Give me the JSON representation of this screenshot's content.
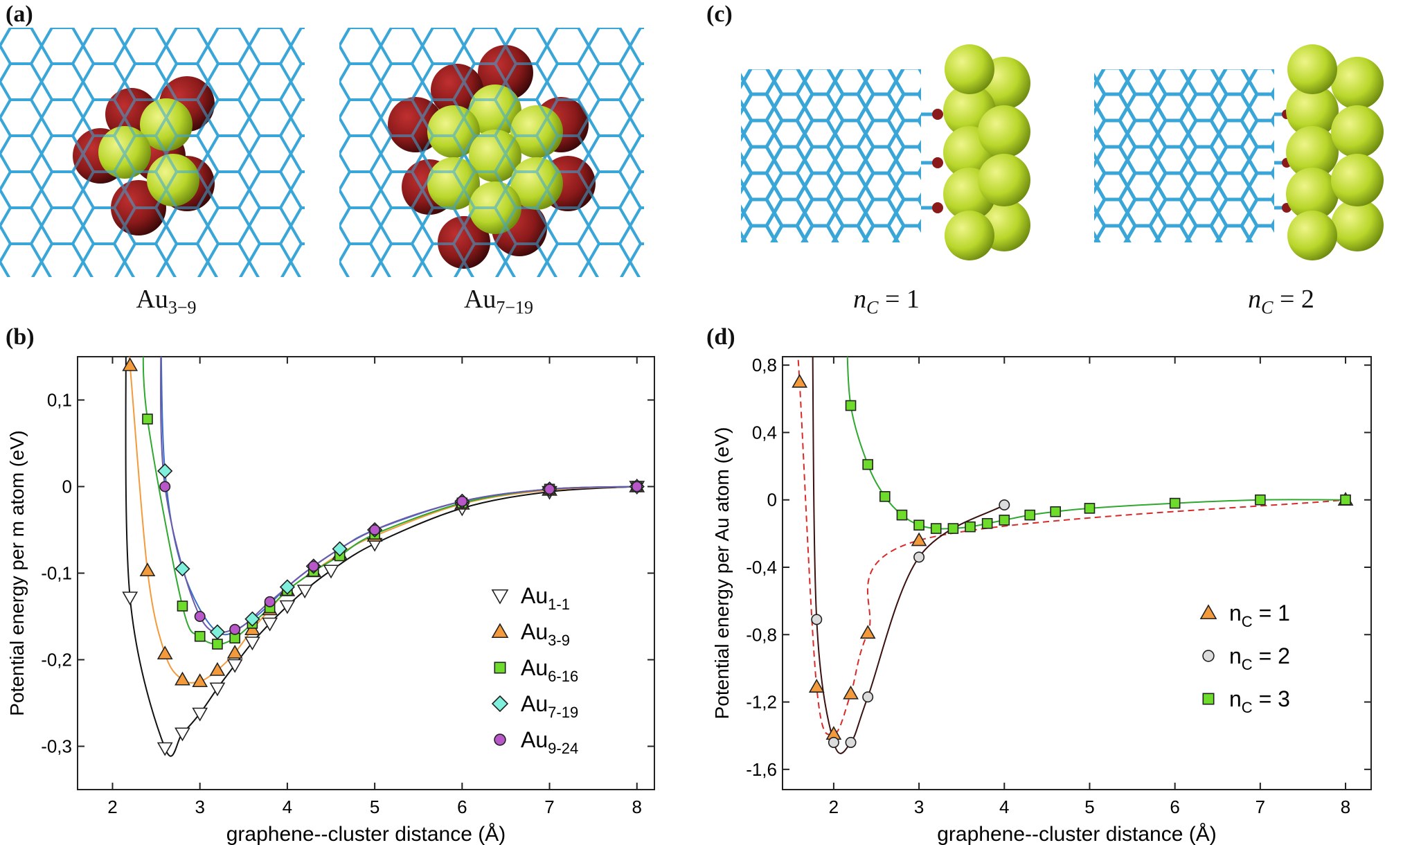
{
  "panels": {
    "a": "(a)",
    "b": "(b)",
    "c": "(c)",
    "d": "(d)"
  },
  "captions": {
    "a_left_main": "Au",
    "a_left_sub": "3−9",
    "a_right_main": "Au",
    "a_right_sub": "7−19",
    "c_left_var": "n",
    "c_left_sub": "C",
    "c_left_rest": " = 1",
    "c_right_var": "n",
    "c_right_sub": "C",
    "c_right_rest": " = 2"
  },
  "colors": {
    "graphene": "#3aa6d8",
    "gold": "#b8d62a",
    "red": "#8b1a1a",
    "hydrogen": "#c8ccd2"
  },
  "chart_data": [
    {
      "id": "b",
      "type": "scatter",
      "xlabel": "graphene--cluster distance (Å)",
      "ylabel": "Potential energy per m atom (eV)",
      "xlim": [
        1.6,
        8.2
      ],
      "ylim": [
        -0.35,
        0.15
      ],
      "xticks": [
        2,
        3,
        4,
        5,
        6,
        7,
        8
      ],
      "xtick_labels": [
        "2",
        "3",
        "4",
        "5",
        "6",
        "7",
        "8"
      ],
      "yticks": [
        0.1,
        0,
        -0.1,
        -0.2,
        -0.3
      ],
      "ytick_labels": [
        "0,1",
        "0",
        "-0,1",
        "-0,2",
        "-0,3"
      ],
      "legend_position": "right",
      "series": [
        {
          "name": "Au",
          "sub": "1-1",
          "marker": "triangle-down",
          "color": "#ffffff",
          "line": "#111111",
          "x": [
            2.2,
            2.6,
            2.8,
            3.0,
            3.2,
            3.4,
            3.6,
            3.8,
            4.0,
            4.2,
            4.5,
            5.0,
            6.0,
            7.0,
            8.0
          ],
          "y": [
            -0.128,
            -0.302,
            -0.285,
            -0.262,
            -0.233,
            -0.206,
            -0.18,
            -0.158,
            -0.138,
            -0.12,
            -0.097,
            -0.066,
            -0.025,
            -0.006,
            0.0
          ]
        },
        {
          "name": "Au",
          "sub": "3-9",
          "marker": "triangle",
          "color": "#f39a3c",
          "line": "#f39a3c",
          "x": [
            2.2,
            2.4,
            2.6,
            2.8,
            3.0,
            3.2,
            3.4,
            3.6,
            3.8,
            4.0,
            4.3,
            4.6,
            5.0,
            6.0,
            7.0,
            8.0
          ],
          "y": [
            0.14,
            -0.097,
            -0.193,
            -0.223,
            -0.225,
            -0.212,
            -0.192,
            -0.165,
            -0.142,
            -0.12,
            -0.098,
            -0.078,
            -0.057,
            -0.02,
            -0.004,
            0.0
          ]
        },
        {
          "name": "Au",
          "sub": "6-16",
          "marker": "square",
          "color": "#6ddc2a",
          "line": "#2ea82e",
          "x": [
            2.4,
            2.8,
            3.0,
            3.2,
            3.4,
            3.6,
            3.8,
            4.0,
            4.3,
            4.6,
            5.0,
            6.0,
            7.0,
            8.0
          ],
          "y": [
            0.078,
            -0.138,
            -0.173,
            -0.182,
            -0.175,
            -0.158,
            -0.14,
            -0.12,
            -0.098,
            -0.08,
            -0.055,
            -0.019,
            -0.003,
            0.0
          ]
        },
        {
          "name": "Au",
          "sub": "7-19",
          "marker": "diamond",
          "color": "#7ff0dc",
          "line": "#3a6ec8",
          "x": [
            2.6,
            2.8,
            3.2,
            3.6,
            4.0,
            4.3,
            4.6,
            5.0,
            6.0,
            7.0,
            8.0
          ],
          "y": [
            0.018,
            -0.095,
            -0.168,
            -0.153,
            -0.116,
            -0.092,
            -0.072,
            -0.05,
            -0.017,
            -0.003,
            0.0
          ]
        },
        {
          "name": "Au",
          "sub": "9-24",
          "marker": "circle",
          "color": "#b858c8",
          "line": "#6a5aa8",
          "x": [
            2.6,
            3.0,
            3.4,
            3.8,
            4.3,
            5.0,
            6.0,
            7.0,
            8.0
          ],
          "y": [
            0.0,
            -0.15,
            -0.165,
            -0.133,
            -0.092,
            -0.05,
            -0.017,
            -0.003,
            0.0
          ]
        }
      ]
    },
    {
      "id": "d",
      "type": "scatter",
      "xlabel": "graphene--cluster distance (Å)",
      "ylabel": "Potential energy per Au atom (eV)",
      "xlim": [
        1.4,
        8.3
      ],
      "ylim": [
        -1.72,
        0.85
      ],
      "xticks": [
        2,
        3,
        4,
        5,
        6,
        7,
        8
      ],
      "xtick_labels": [
        "2",
        "3",
        "4",
        "5",
        "6",
        "7",
        "8"
      ],
      "yticks": [
        0.8,
        0.4,
        0,
        -0.4,
        -0.8,
        -1.2,
        -1.6
      ],
      "ytick_labels": [
        "0,8",
        "0,4",
        "0",
        "-0,4",
        "-0,8",
        "-1,2",
        "-1,6"
      ],
      "legend_position": "right",
      "series": [
        {
          "name": "n",
          "sub": "C",
          "rest": " = 1",
          "marker": "triangle",
          "color": "#f39a3c",
          "line": "#d82a2a",
          "dashed": true,
          "x": [
            1.6,
            1.8,
            2.0,
            2.2,
            2.4,
            3.0,
            8.0
          ],
          "y": [
            0.7,
            -1.11,
            -1.39,
            -1.15,
            -0.79,
            -0.24,
            0.0
          ]
        },
        {
          "name": "n",
          "sub": "C",
          "rest": " = 2",
          "marker": "circle",
          "color": "#dcdcdc",
          "line": "#3a1010",
          "x": [
            1.8,
            2.0,
            2.2,
            2.4,
            3.0,
            4.0
          ],
          "y": [
            -0.71,
            -1.44,
            -1.44,
            -1.17,
            -0.34,
            -0.03
          ]
        },
        {
          "name": "n",
          "sub": "C",
          "rest": " = 3",
          "marker": "square",
          "color": "#6ddc2a",
          "line": "#2ea82e",
          "x": [
            2.2,
            2.4,
            2.6,
            2.8,
            3.0,
            3.2,
            3.4,
            3.6,
            3.8,
            4.0,
            4.3,
            4.6,
            5.0,
            6.0,
            7.0,
            8.0
          ],
          "y": [
            0.56,
            0.21,
            0.02,
            -0.09,
            -0.15,
            -0.17,
            -0.17,
            -0.16,
            -0.14,
            -0.12,
            -0.09,
            -0.07,
            -0.05,
            -0.02,
            0.0,
            0.0
          ]
        }
      ]
    }
  ]
}
